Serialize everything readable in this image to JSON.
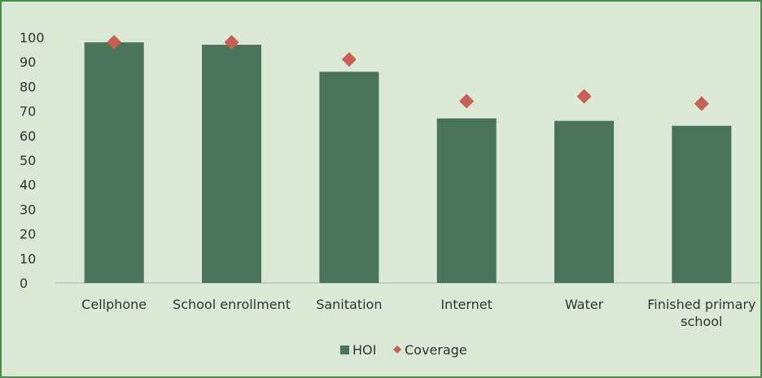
{
  "chart_data": {
    "type": "bar",
    "categories": [
      "Cellphone",
      "School enrollment",
      "Sanitation",
      "Internet",
      "Water",
      "Finished primary school"
    ],
    "category_lines": [
      [
        "Cellphone"
      ],
      [
        "School enrollment"
      ],
      [
        "Sanitation"
      ],
      [
        "Internet"
      ],
      [
        "Water"
      ],
      [
        "Finished primary",
        "school"
      ]
    ],
    "series": [
      {
        "name": "HOI",
        "type": "bar",
        "values": [
          98,
          97,
          86,
          67,
          66,
          64
        ],
        "color": "#4a7459"
      },
      {
        "name": "Coverage",
        "type": "marker",
        "marker": "diamond",
        "values": [
          98,
          98,
          91,
          74,
          76,
          73
        ],
        "color": "#c65f55"
      }
    ],
    "ylim": [
      0,
      100
    ],
    "yticks": [
      0,
      10,
      20,
      30,
      40,
      50,
      60,
      70,
      80,
      90,
      100
    ],
    "grid": false,
    "legend": "bottom-center",
    "title": "",
    "xlabel": "",
    "ylabel": ""
  }
}
